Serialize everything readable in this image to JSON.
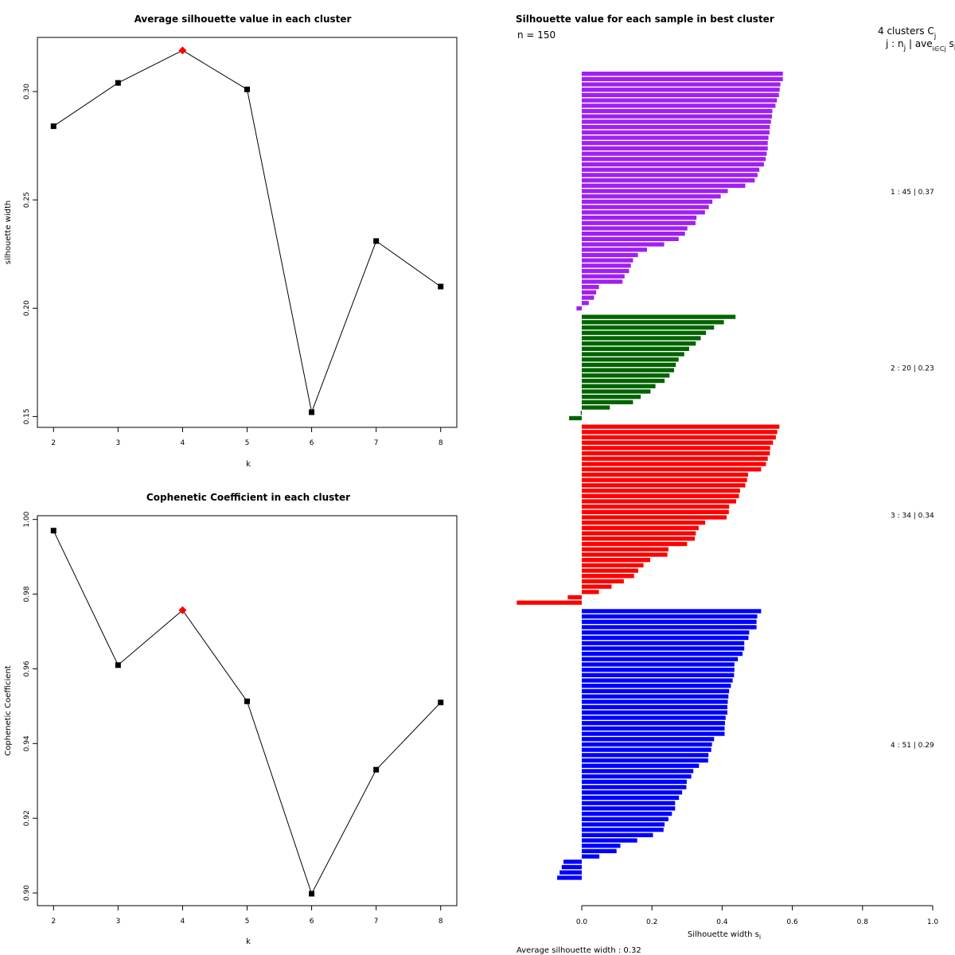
{
  "chart_data": [
    {
      "type": "line",
      "title": "Average silhouette value in each cluster",
      "xlabel": "k",
      "ylabel": "silhouette width",
      "x": [
        2,
        3,
        4,
        5,
        6,
        7,
        8
      ],
      "values": [
        0.284,
        0.304,
        0.319,
        0.301,
        0.152,
        0.231,
        0.21
      ],
      "highlight_index": 2,
      "highlight_color": "#ff0000",
      "xticks": [
        "2",
        "3",
        "4",
        "5",
        "6",
        "7",
        "8"
      ],
      "yticks": [
        "0.15",
        "0.20",
        "0.25",
        "0.30"
      ],
      "xlim": [
        1.75,
        8.25
      ],
      "ylim": [
        0.145,
        0.325
      ]
    },
    {
      "type": "line",
      "title": "Cophenetic Coefficient in each cluster",
      "xlabel": "k",
      "ylabel": "Cophenetic Coefficient",
      "x": [
        2,
        3,
        4,
        5,
        6,
        7,
        8
      ],
      "values": [
        0.997,
        0.961,
        0.9757,
        0.9513,
        0.8998,
        0.933,
        0.951
      ],
      "highlight_index": 2,
      "highlight_color": "#ff0000",
      "xticks": [
        "2",
        "3",
        "4",
        "5",
        "6",
        "7",
        "8"
      ],
      "yticks": [
        "0.90",
        "0.92",
        "0.94",
        "0.96",
        "0.98",
        "1.00"
      ],
      "xlim": [
        1.75,
        8.25
      ],
      "ylim": [
        0.8966,
        1.001
      ]
    },
    {
      "type": "bar",
      "orientation": "horizontal",
      "title": "Silhouette value for each sample in best cluster",
      "n_label": "n = 150",
      "header_line1": "4 clusters  C",
      "header_sub1": "j",
      "header_line2": "j :  n",
      "header_sub2": "j",
      "header_line2b": " | ave",
      "header_sub3": "i∈Cj",
      "header_line2c": " s",
      "header_sub4": "i",
      "xlabel": "Silhouette width s",
      "xlabel_sub": "i",
      "footer": "Average silhouette width :  0.32",
      "xticks": [
        "0.0",
        "0.2",
        "0.4",
        "0.6",
        "0.8",
        "1.0"
      ],
      "xlim": [
        -0.2,
        1.0
      ],
      "clusters": [
        {
          "label": "1 :  45  |  0.37",
          "color": "#a020f0",
          "values": [
            0.573,
            0.573,
            0.566,
            0.564,
            0.562,
            0.556,
            0.552,
            0.543,
            0.542,
            0.539,
            0.536,
            0.535,
            0.532,
            0.53,
            0.53,
            0.527,
            0.524,
            0.519,
            0.506,
            0.501,
            0.493,
            0.466,
            0.416,
            0.396,
            0.372,
            0.362,
            0.351,
            0.327,
            0.324,
            0.301,
            0.294,
            0.276,
            0.235,
            0.186,
            0.16,
            0.146,
            0.14,
            0.135,
            0.122,
            0.116,
            0.049,
            0.041,
            0.035,
            0.02,
            -0.015
          ]
        },
        {
          "label": "2 :  20  |  0.23",
          "color": "#006400",
          "values": [
            0.438,
            0.405,
            0.377,
            0.354,
            0.339,
            0.325,
            0.306,
            0.292,
            0.276,
            0.268,
            0.263,
            0.25,
            0.236,
            0.21,
            0.196,
            0.168,
            0.146,
            0.08,
            -0.003,
            -0.036
          ]
        },
        {
          "label": "3 :  34  |  0.34",
          "color": "#ff0000",
          "values": [
            0.563,
            0.557,
            0.553,
            0.545,
            0.537,
            0.536,
            0.53,
            0.525,
            0.511,
            0.474,
            0.471,
            0.466,
            0.451,
            0.448,
            0.44,
            0.42,
            0.419,
            0.413,
            0.352,
            0.333,
            0.325,
            0.322,
            0.3,
            0.247,
            0.244,
            0.195,
            0.176,
            0.161,
            0.149,
            0.12,
            0.085,
            0.049,
            -0.04,
            -0.185
          ]
        },
        {
          "label": "4 :  51  |  0.29",
          "color": "#0000ff",
          "values": [
            0.511,
            0.5,
            0.498,
            0.498,
            0.477,
            0.475,
            0.463,
            0.463,
            0.458,
            0.445,
            0.435,
            0.435,
            0.434,
            0.43,
            0.425,
            0.42,
            0.418,
            0.416,
            0.415,
            0.415,
            0.41,
            0.408,
            0.407,
            0.407,
            0.377,
            0.371,
            0.369,
            0.361,
            0.36,
            0.334,
            0.318,
            0.312,
            0.299,
            0.298,
            0.286,
            0.277,
            0.266,
            0.266,
            0.257,
            0.247,
            0.236,
            0.233,
            0.203,
            0.158,
            0.11,
            0.099,
            0.05,
            -0.052,
            -0.057,
            -0.063,
            -0.07
          ]
        }
      ]
    }
  ]
}
